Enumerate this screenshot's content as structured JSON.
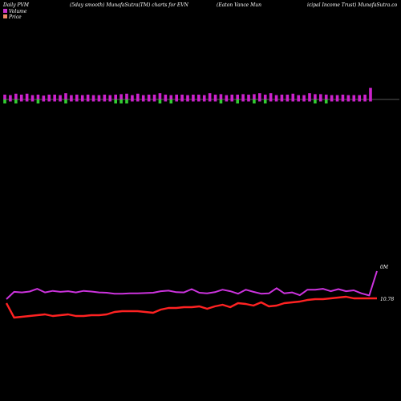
{
  "header": {
    "col1": "Daily PVM",
    "col2": "(5day smooth) MunafaSutra(TM) charts for EVN",
    "col3": "(Eaton  Vance  Mun",
    "col4": "icipal Income  Trust) MunafaSutra.co"
  },
  "legend": {
    "volume_label": "Volume",
    "price_label": "Price",
    "volume_color": "#cc33cc",
    "price_color": "#ee8866"
  },
  "chart_data": [
    {
      "type": "bar",
      "title": "Volume",
      "colors": {
        "up": "#cc22cc",
        "down": "#33cc33"
      },
      "values": [
        1.0,
        0.9,
        1.2,
        1.0,
        1.2,
        0.9,
        1.0,
        0.8,
        1.0,
        1.0,
        0.9,
        1.3,
        0.9,
        1.0,
        0.9,
        1.0,
        0.9,
        0.9,
        1.0,
        0.9,
        1.0,
        1.1,
        1.2,
        0.9,
        1.2,
        0.9,
        1.0,
        1.0,
        1.3,
        1.0,
        0.9,
        1.0,
        1.0,
        0.9,
        1.0,
        1.0,
        0.9,
        1.3,
        1.0,
        1.1,
        0.9,
        1.0,
        1.0,
        1.1,
        1.0,
        1.1,
        1.3,
        1.0,
        1.3,
        0.9,
        1.0,
        1.0,
        1.2,
        0.9,
        0.9,
        1.3,
        1.1,
        1.1,
        1.0,
        0.9,
        0.9,
        1.0,
        0.9,
        0.9,
        0.9,
        1.0,
        2.4
      ],
      "down_flags": [
        1,
        0,
        1,
        0,
        0,
        0,
        1,
        0,
        0,
        0,
        0,
        1,
        0,
        0,
        0,
        0,
        0,
        0,
        0,
        0,
        1,
        1,
        1,
        0,
        0,
        0,
        0,
        0,
        1,
        0,
        1,
        0,
        0,
        0,
        0,
        0,
        0,
        0,
        0,
        1,
        0,
        0,
        1,
        0,
        0,
        1,
        0,
        1,
        0,
        0,
        0,
        0,
        0,
        0,
        0,
        0,
        1,
        0,
        1,
        0,
        0,
        0,
        0,
        0,
        0,
        0,
        0
      ]
    },
    {
      "type": "line",
      "series": [
        {
          "color": "#cc33dd",
          "values": [
            0.0,
            2.4,
            2.2,
            2.5,
            3.4,
            2.2,
            2.7,
            2.4,
            2.6,
            2.2,
            2.7,
            2.5,
            2.2,
            2.1,
            1.8,
            1.8,
            1.9,
            1.9,
            2.0,
            2.1,
            2.6,
            2.8,
            2.3,
            2.2,
            3.3,
            2.1,
            1.9,
            2.3,
            3.1,
            2.6,
            1.8,
            3.1,
            2.4,
            1.8,
            1.9,
            3.6,
            1.9,
            2.2,
            1.3,
            3.1,
            3.1,
            3.4,
            2.6,
            3.3,
            2.6,
            2.9,
            1.9,
            1.2,
            9.2
          ],
          "end_label": "0M"
        },
        {
          "color": "#ff2222",
          "values": [
            10.62,
            10.44,
            10.45,
            10.46,
            10.47,
            10.48,
            10.46,
            10.47,
            10.48,
            10.46,
            10.46,
            10.47,
            10.47,
            10.48,
            10.51,
            10.52,
            10.52,
            10.52,
            10.51,
            10.5,
            10.54,
            10.56,
            10.56,
            10.57,
            10.57,
            10.58,
            10.55,
            10.58,
            10.6,
            10.57,
            10.62,
            10.61,
            10.59,
            10.63,
            10.58,
            10.59,
            10.62,
            10.63,
            10.64,
            10.66,
            10.67,
            10.67,
            10.68,
            10.69,
            10.7,
            10.68,
            10.68,
            10.68,
            10.68
          ],
          "end_label": "10.78"
        }
      ]
    }
  ]
}
